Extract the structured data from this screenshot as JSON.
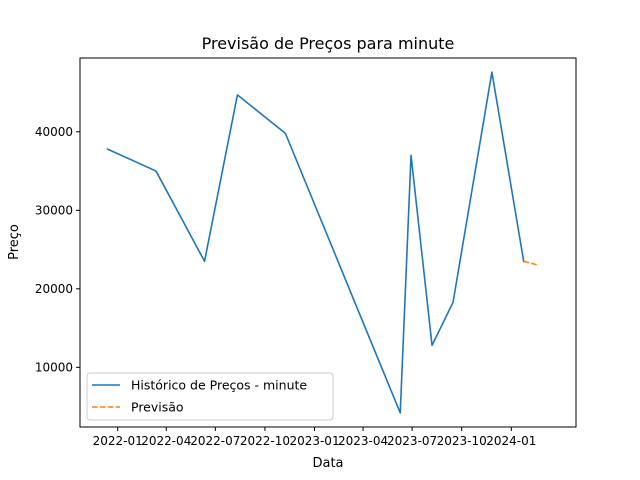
{
  "chart_data": {
    "type": "line",
    "title": "Previsão de Preços para minute",
    "xlabel": "Data",
    "ylabel": "Preço",
    "xlim": [
      "2021-10-23",
      "2024-04-30"
    ],
    "ylim": [
      2400,
      49400
    ],
    "x_ticks": [
      {
        "date": "2022-01-01",
        "label": "2022-01"
      },
      {
        "date": "2022-04-01",
        "label": "2022-04"
      },
      {
        "date": "2022-07-01",
        "label": "2022-07"
      },
      {
        "date": "2022-10-01",
        "label": "2022-10"
      },
      {
        "date": "2023-01-01",
        "label": "2023-01"
      },
      {
        "date": "2023-04-01",
        "label": "2023-04"
      },
      {
        "date": "2023-07-01",
        "label": "2023-07"
      },
      {
        "date": "2023-10-01",
        "label": "2023-10"
      },
      {
        "date": "2024-01-01",
        "label": "2024-01"
      }
    ],
    "y_ticks": [
      10000,
      20000,
      30000,
      40000
    ],
    "grid": false,
    "legend_position": "lower-left",
    "series": [
      {
        "name": "Histórico de Preços - minute",
        "color": "#1f77b4",
        "style": "solid",
        "points": [
          {
            "x": "2021-12-13",
            "y": 37800
          },
          {
            "x": "2022-03-13",
            "y": 35000
          },
          {
            "x": "2022-06-11",
            "y": 23500
          },
          {
            "x": "2022-08-11",
            "y": 44700
          },
          {
            "x": "2022-11-08",
            "y": 39800
          },
          {
            "x": "2023-06-09",
            "y": 4200
          },
          {
            "x": "2023-06-29",
            "y": 37000
          },
          {
            "x": "2023-08-07",
            "y": 12800
          },
          {
            "x": "2023-09-15",
            "y": 18300
          },
          {
            "x": "2023-11-26",
            "y": 47600
          },
          {
            "x": "2024-01-24",
            "y": 23500
          }
        ]
      },
      {
        "name": "Previsão",
        "color": "#ff7f0e",
        "style": "dashed",
        "points": [
          {
            "x": "2024-01-24",
            "y": 23500
          },
          {
            "x": "2024-02-21",
            "y": 23000
          }
        ]
      }
    ]
  }
}
